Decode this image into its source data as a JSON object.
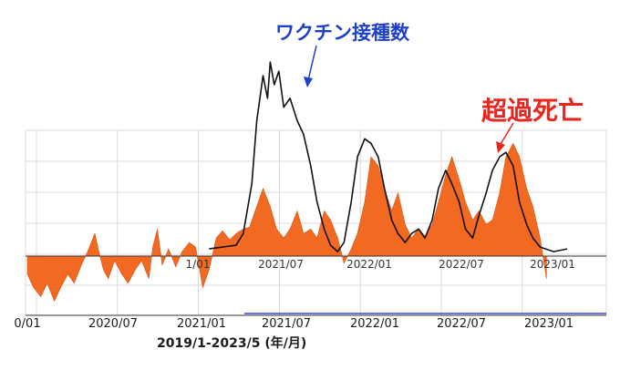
{
  "annotations": {
    "vaccinations": "ワクチン接種数",
    "excess_deaths": "超過死亡"
  },
  "date_range_caption": "2019/1-2023/5 (年/月)",
  "colors": {
    "excess_fill": "#f26a21",
    "vaccine_line": "#111111",
    "vax_arrow": "#1d3fc9",
    "excess_arrow": "#e8261e",
    "grid": "#d9d9d9",
    "axis_blue": "#3b4bd6"
  },
  "chart_data": {
    "type": "area",
    "title": "",
    "x_unit": "month",
    "x_range": [
      "2020/01",
      "2023/05"
    ],
    "bottom_axis_ticks": [
      "0/01",
      "2020/07",
      "2021/01",
      "2021/07",
      "2022/01",
      "2022/07",
      "2023/01"
    ],
    "inner_axis_ticks": [
      "1/01",
      "2021/07",
      "2022/01",
      "2022/07",
      "2023/01"
    ],
    "series": [
      {
        "name": "超過死亡",
        "style": "filled area",
        "points": [
          [
            "2020/01/01",
            -20
          ],
          [
            "2020/01/15",
            -35
          ],
          [
            "2020/02/01",
            -45
          ],
          [
            "2020/02/15",
            -30
          ],
          [
            "2020/03/01",
            -50
          ],
          [
            "2020/03/15",
            -35
          ],
          [
            "2020/04/01",
            -20
          ],
          [
            "2020/04/15",
            -30
          ],
          [
            "2020/05/01",
            -10
          ],
          [
            "2020/05/15",
            5
          ],
          [
            "2020/06/01",
            25
          ],
          [
            "2020/06/10",
            5
          ],
          [
            "2020/06/20",
            -15
          ],
          [
            "2020/07/01",
            -25
          ],
          [
            "2020/07/15",
            -5
          ],
          [
            "2020/08/01",
            -20
          ],
          [
            "2020/08/15",
            -30
          ],
          [
            "2020/09/01",
            -15
          ],
          [
            "2020/09/15",
            -5
          ],
          [
            "2020/10/01",
            -25
          ],
          [
            "2020/10/10",
            10
          ],
          [
            "2020/10/20",
            30
          ],
          [
            "2020/11/01",
            -10
          ],
          [
            "2020/11/15",
            8
          ],
          [
            "2020/12/01",
            -12
          ],
          [
            "2020/12/15",
            5
          ],
          [
            "2021/01/01",
            15
          ],
          [
            "2021/01/15",
            10
          ],
          [
            "2021/02/01",
            -35
          ],
          [
            "2021/02/15",
            -15
          ],
          [
            "2021/03/01",
            20
          ],
          [
            "2021/03/15",
            28
          ],
          [
            "2021/04/01",
            18
          ],
          [
            "2021/04/15",
            25
          ],
          [
            "2021/05/01",
            30
          ],
          [
            "2021/05/15",
            32
          ],
          [
            "2021/06/01",
            55
          ],
          [
            "2021/06/15",
            75
          ],
          [
            "2021/07/01",
            55
          ],
          [
            "2021/07/15",
            30
          ],
          [
            "2021/08/01",
            20
          ],
          [
            "2021/08/15",
            30
          ],
          [
            "2021/09/01",
            50
          ],
          [
            "2021/09/15",
            25
          ],
          [
            "2021/10/01",
            30
          ],
          [
            "2021/10/15",
            20
          ],
          [
            "2021/11/01",
            50
          ],
          [
            "2021/11/15",
            40
          ],
          [
            "2021/12/01",
            20
          ],
          [
            "2021/12/15",
            -8
          ],
          [
            "2022/01/01",
            8
          ],
          [
            "2022/01/15",
            25
          ],
          [
            "2022/02/01",
            60
          ],
          [
            "2022/02/15",
            110
          ],
          [
            "2022/03/01",
            100
          ],
          [
            "2022/03/15",
            75
          ],
          [
            "2022/04/01",
            50
          ],
          [
            "2022/04/15",
            70
          ],
          [
            "2022/05/01",
            35
          ],
          [
            "2022/05/15",
            20
          ],
          [
            "2022/06/01",
            30
          ],
          [
            "2022/06/15",
            22
          ],
          [
            "2022/07/01",
            35
          ],
          [
            "2022/07/15",
            60
          ],
          [
            "2022/08/01",
            90
          ],
          [
            "2022/08/15",
            110
          ],
          [
            "2022/09/01",
            85
          ],
          [
            "2022/09/15",
            60
          ],
          [
            "2022/10/01",
            40
          ],
          [
            "2022/10/15",
            50
          ],
          [
            "2022/11/01",
            35
          ],
          [
            "2022/11/15",
            40
          ],
          [
            "2022/12/01",
            70
          ],
          [
            "2022/12/15",
            110
          ],
          [
            "2023/01/01",
            125
          ],
          [
            "2023/01/15",
            110
          ],
          [
            "2023/02/01",
            75
          ],
          [
            "2023/02/15",
            55
          ],
          [
            "2023/03/01",
            20
          ],
          [
            "2023/03/15",
            -25
          ]
        ]
      },
      {
        "name": "ワクチン接種数",
        "style": "line",
        "points": [
          [
            "2021/02/15",
            8
          ],
          [
            "2021/03/15",
            10
          ],
          [
            "2021/04/15",
            12
          ],
          [
            "2021/05/01",
            25
          ],
          [
            "2021/05/20",
            80
          ],
          [
            "2021/06/01",
            150
          ],
          [
            "2021/06/15",
            200
          ],
          [
            "2021/06/25",
            175
          ],
          [
            "2021/07/01",
            215
          ],
          [
            "2021/07/10",
            190
          ],
          [
            "2021/07/20",
            205
          ],
          [
            "2021/08/01",
            165
          ],
          [
            "2021/08/15",
            175
          ],
          [
            "2021/09/01",
            150
          ],
          [
            "2021/09/15",
            135
          ],
          [
            "2021/10/01",
            100
          ],
          [
            "2021/10/15",
            60
          ],
          [
            "2021/11/01",
            30
          ],
          [
            "2021/11/15",
            12
          ],
          [
            "2021/12/01",
            5
          ],
          [
            "2021/12/15",
            15
          ],
          [
            "2022/01/01",
            60
          ],
          [
            "2022/01/15",
            110
          ],
          [
            "2022/02/01",
            130
          ],
          [
            "2022/02/15",
            125
          ],
          [
            "2022/03/01",
            110
          ],
          [
            "2022/03/15",
            75
          ],
          [
            "2022/04/01",
            40
          ],
          [
            "2022/04/15",
            25
          ],
          [
            "2022/05/01",
            15
          ],
          [
            "2022/05/15",
            25
          ],
          [
            "2022/06/01",
            30
          ],
          [
            "2022/06/15",
            20
          ],
          [
            "2022/07/01",
            40
          ],
          [
            "2022/07/15",
            75
          ],
          [
            "2022/08/01",
            95
          ],
          [
            "2022/08/15",
            80
          ],
          [
            "2022/09/01",
            60
          ],
          [
            "2022/09/15",
            30
          ],
          [
            "2022/10/01",
            20
          ],
          [
            "2022/10/15",
            45
          ],
          [
            "2022/11/01",
            70
          ],
          [
            "2022/11/15",
            95
          ],
          [
            "2022/12/01",
            110
          ],
          [
            "2022/12/15",
            115
          ],
          [
            "2023/01/01",
            100
          ],
          [
            "2023/01/15",
            60
          ],
          [
            "2023/02/01",
            35
          ],
          [
            "2023/02/15",
            20
          ],
          [
            "2023/03/01",
            10
          ],
          [
            "2023/04/01",
            5
          ],
          [
            "2023/05/01",
            8
          ]
        ]
      }
    ],
    "grid": true,
    "legend": "none"
  }
}
